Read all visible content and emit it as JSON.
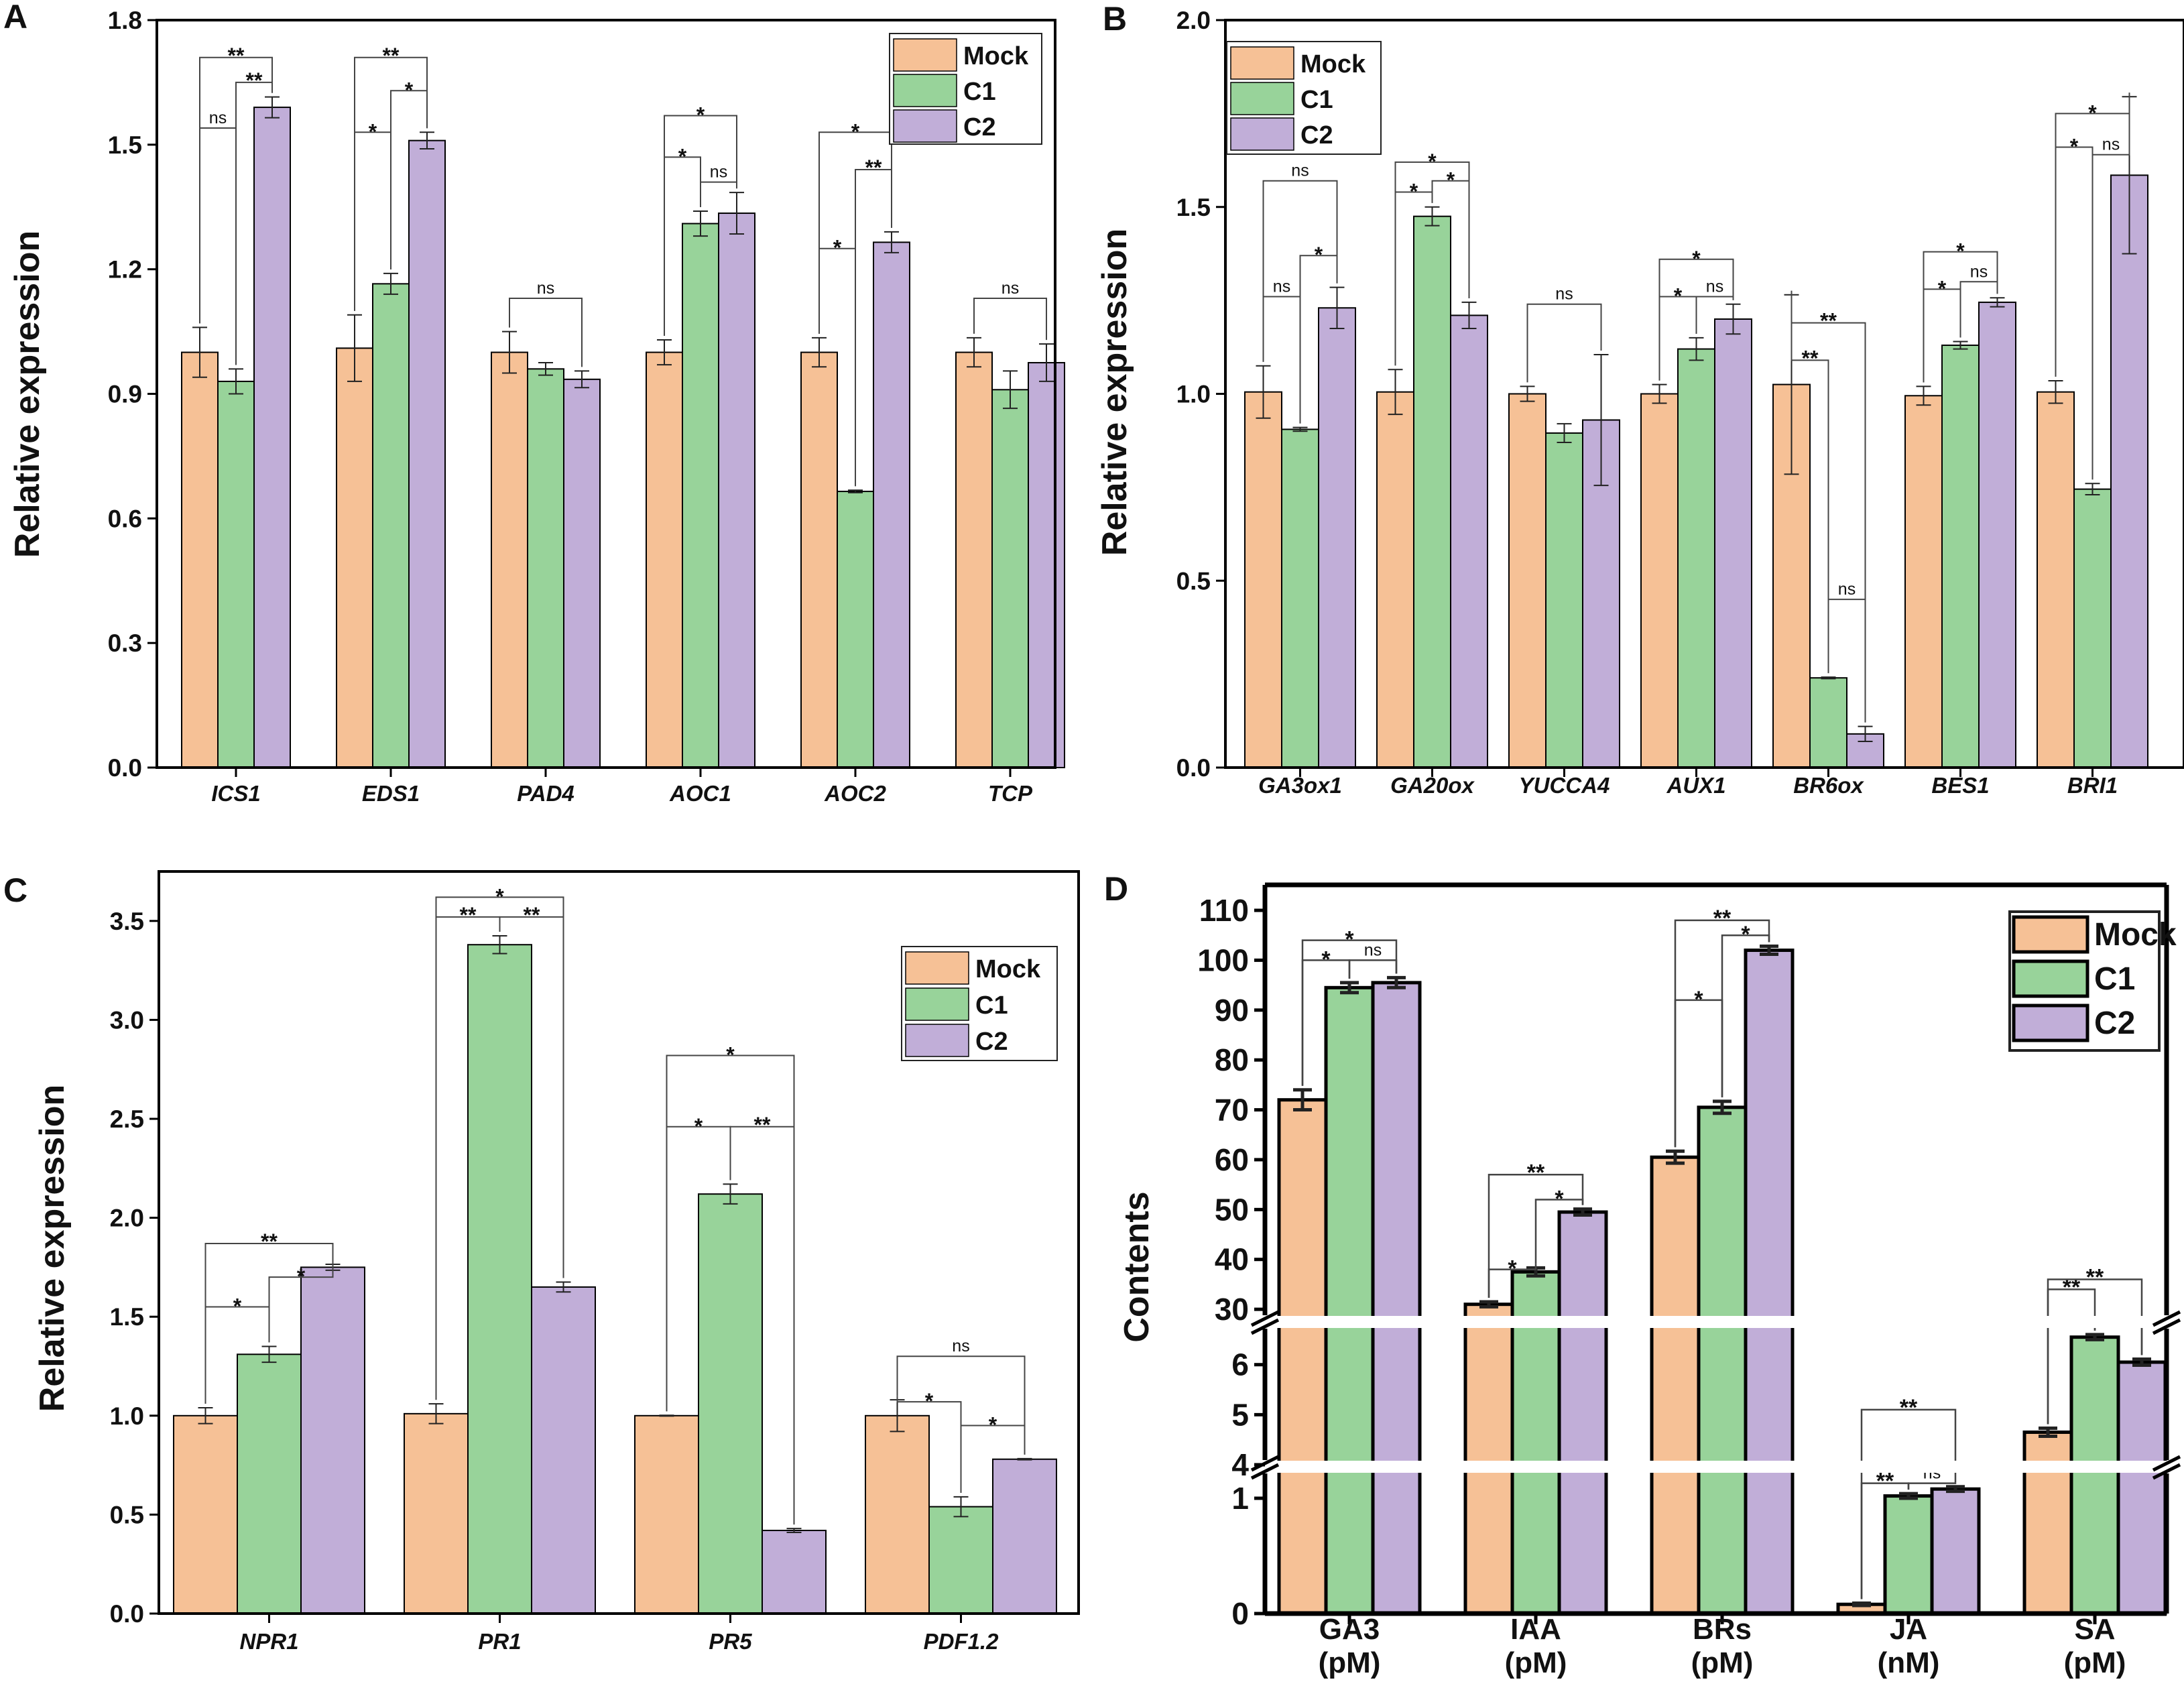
{
  "colors": {
    "Mock": "#f6c196",
    "C1": "#98d39a",
    "C2": "#c1aed8"
  },
  "chart_data": [
    {
      "panel": "A",
      "type": "bar",
      "title": "",
      "xlabel": "",
      "ylabel": "Relative expression",
      "ylim": [
        0,
        1.8
      ],
      "yticks": [
        "0.0",
        "0.3",
        "0.6",
        "0.9",
        "1.2",
        "1.5",
        "1.8"
      ],
      "ytick_values": [
        0,
        0.3,
        0.6,
        0.9,
        1.2,
        1.5,
        1.8
      ],
      "legend_position": "top-right",
      "categories": [
        "ICS1",
        "EDS1",
        "PAD4",
        "AOC1",
        "AOC2",
        "TCP"
      ],
      "series": [
        {
          "name": "Mock",
          "values": [
            1.0,
            1.01,
            1.0,
            1.0,
            1.0,
            1.0
          ],
          "errors": [
            0.06,
            0.08,
            0.05,
            0.03,
            0.035,
            0.035
          ]
        },
        {
          "name": "C1",
          "values": [
            0.93,
            1.165,
            0.96,
            1.31,
            0.665,
            0.91
          ],
          "errors": [
            0.03,
            0.025,
            0.015,
            0.03,
            0.003,
            0.045
          ]
        },
        {
          "name": "C2",
          "values": [
            1.59,
            1.51,
            0.935,
            1.335,
            1.265,
            0.975
          ],
          "errors": [
            0.025,
            0.02,
            0.02,
            0.05,
            0.025,
            0.045
          ]
        }
      ],
      "significance": [
        {
          "category": 0,
          "pair": [
            0,
            1
          ],
          "label": "ns",
          "level": 1.54
        },
        {
          "category": 0,
          "pair": [
            1,
            2
          ],
          "label": "**",
          "level": 1.65
        },
        {
          "category": 0,
          "pair": [
            0,
            2
          ],
          "label": "**",
          "level": 1.71
        },
        {
          "category": 1,
          "pair": [
            0,
            1
          ],
          "label": "*",
          "level": 1.53
        },
        {
          "category": 1,
          "pair": [
            1,
            2
          ],
          "label": "*",
          "level": 1.63
        },
        {
          "category": 1,
          "pair": [
            0,
            2
          ],
          "label": "**",
          "level": 1.71
        },
        {
          "category": 2,
          "pair": [
            0,
            2
          ],
          "label": "ns",
          "level": 1.13
        },
        {
          "category": 3,
          "pair": [
            0,
            1
          ],
          "label": "*",
          "level": 1.47
        },
        {
          "category": 3,
          "pair": [
            1,
            2
          ],
          "label": "ns",
          "level": 1.41
        },
        {
          "category": 3,
          "pair": [
            0,
            2
          ],
          "label": "*",
          "level": 1.57
        },
        {
          "category": 4,
          "pair": [
            0,
            1
          ],
          "label": "*",
          "level": 1.25
        },
        {
          "category": 4,
          "pair": [
            1,
            2
          ],
          "label": "**",
          "level": 1.44
        },
        {
          "category": 4,
          "pair": [
            0,
            2
          ],
          "label": "*",
          "level": 1.53
        },
        {
          "category": 5,
          "pair": [
            0,
            2
          ],
          "label": "ns",
          "level": 1.13
        }
      ]
    },
    {
      "panel": "B",
      "type": "bar",
      "title": "",
      "xlabel": "",
      "ylabel": "Relative expression",
      "ylim": [
        0,
        2.0
      ],
      "yticks": [
        "0.0",
        "0.5",
        "1.0",
        "1.5",
        "2.0"
      ],
      "ytick_values": [
        0,
        0.5,
        1.0,
        1.5,
        2.0
      ],
      "legend_position": "top-left",
      "categories": [
        "GA3ox1",
        "GA20ox",
        "YUCCA4",
        "AUX1",
        "BR6ox",
        "BES1",
        "BRI1"
      ],
      "series": [
        {
          "name": "Mock",
          "values": [
            1.005,
            1.005,
            1.0,
            1.0,
            1.025,
            0.995,
            1.005
          ],
          "errors": [
            0.07,
            0.06,
            0.02,
            0.025,
            0.24,
            0.025,
            0.03
          ]
        },
        {
          "name": "C1",
          "values": [
            0.905,
            1.475,
            0.895,
            1.12,
            0.24,
            1.13,
            0.745
          ],
          "errors": [
            0.005,
            0.025,
            0.025,
            0.03,
            0.002,
            0.01,
            0.015
          ]
        },
        {
          "name": "C2",
          "values": [
            1.23,
            1.21,
            0.93,
            1.2,
            0.09,
            1.245,
            1.585
          ],
          "errors": [
            0.055,
            0.035,
            0.175,
            0.04,
            0.02,
            0.012,
            0.21
          ]
        }
      ],
      "significance": [
        {
          "category": 0,
          "pair": [
            0,
            1
          ],
          "label": "ns",
          "level": 1.26
        },
        {
          "category": 0,
          "pair": [
            1,
            2
          ],
          "label": "*",
          "level": 1.37
        },
        {
          "category": 0,
          "pair": [
            0,
            2
          ],
          "label": "ns",
          "level": 1.57
        },
        {
          "category": 1,
          "pair": [
            0,
            1
          ],
          "label": "*",
          "level": 1.54
        },
        {
          "category": 1,
          "pair": [
            1,
            2
          ],
          "label": "*",
          "level": 1.57
        },
        {
          "category": 1,
          "pair": [
            0,
            2
          ],
          "label": "*",
          "level": 1.62
        },
        {
          "category": 2,
          "pair": [
            0,
            2
          ],
          "label": "ns",
          "level": 1.24
        },
        {
          "category": 3,
          "pair": [
            0,
            1
          ],
          "label": "*",
          "level": 1.26
        },
        {
          "category": 3,
          "pair": [
            1,
            2
          ],
          "label": "ns",
          "level": 1.26
        },
        {
          "category": 3,
          "pair": [
            0,
            2
          ],
          "label": "*",
          "level": 1.36
        },
        {
          "category": 4,
          "pair": [
            0,
            1
          ],
          "label": "**",
          "level": 1.09
        },
        {
          "category": 4,
          "pair": [
            1,
            2
          ],
          "label": "ns",
          "level": 0.45
        },
        {
          "category": 4,
          "pair": [
            0,
            2
          ],
          "label": "**",
          "level": 1.19
        },
        {
          "category": 5,
          "pair": [
            0,
            1
          ],
          "label": "*",
          "level": 1.28
        },
        {
          "category": 5,
          "pair": [
            1,
            2
          ],
          "label": "ns",
          "level": 1.3
        },
        {
          "category": 5,
          "pair": [
            0,
            2
          ],
          "label": "*",
          "level": 1.38
        },
        {
          "category": 6,
          "pair": [
            0,
            1
          ],
          "label": "*",
          "level": 1.66
        },
        {
          "category": 6,
          "pair": [
            1,
            2
          ],
          "label": "ns",
          "level": 1.64
        },
        {
          "category": 6,
          "pair": [
            0,
            2
          ],
          "label": "*",
          "level": 1.75
        }
      ]
    },
    {
      "panel": "C",
      "type": "bar",
      "title": "",
      "xlabel": "",
      "ylabel": "Relative expression",
      "ylim": [
        0,
        3.75
      ],
      "yticks": [
        "0.0",
        "0.5",
        "1.0",
        "1.5",
        "2.0",
        "2.5",
        "3.0",
        "3.5"
      ],
      "ytick_values": [
        0,
        0.5,
        1.0,
        1.5,
        2.0,
        2.5,
        3.0,
        3.5
      ],
      "legend_position": "top-right",
      "categories": [
        "NPR1",
        "PR1",
        "PR5",
        "PDF1.2"
      ],
      "series": [
        {
          "name": "Mock",
          "values": [
            1.0,
            1.01,
            1.0,
            1.0
          ],
          "errors": [
            0.04,
            0.05,
            0.002,
            0.08
          ]
        },
        {
          "name": "C1",
          "values": [
            1.31,
            3.38,
            2.12,
            0.54
          ],
          "errors": [
            0.04,
            0.045,
            0.05,
            0.05
          ]
        },
        {
          "name": "C2",
          "values": [
            1.75,
            1.65,
            0.42,
            0.78
          ],
          "errors": [
            0.015,
            0.025,
            0.01,
            0.003
          ]
        }
      ],
      "significance": [
        {
          "category": 0,
          "pair": [
            0,
            1
          ],
          "label": "*",
          "level": 1.55
        },
        {
          "category": 0,
          "pair": [
            1,
            2
          ],
          "label": "*",
          "level": 1.7
        },
        {
          "category": 0,
          "pair": [
            0,
            2
          ],
          "label": "**",
          "level": 1.87
        },
        {
          "category": 1,
          "pair": [
            0,
            1
          ],
          "label": "**",
          "level": 3.52
        },
        {
          "category": 1,
          "pair": [
            1,
            2
          ],
          "label": "**",
          "level": 3.52
        },
        {
          "category": 1,
          "pair": [
            0,
            2
          ],
          "label": "*",
          "level": 3.62
        },
        {
          "category": 2,
          "pair": [
            0,
            1
          ],
          "label": "*",
          "level": 2.46
        },
        {
          "category": 2,
          "pair": [
            1,
            2
          ],
          "label": "**",
          "level": 2.46
        },
        {
          "category": 2,
          "pair": [
            0,
            2
          ],
          "label": "*",
          "level": 2.82
        },
        {
          "category": 3,
          "pair": [
            0,
            1
          ],
          "label": "*",
          "level": 1.07
        },
        {
          "category": 3,
          "pair": [
            1,
            2
          ],
          "label": "*",
          "level": 0.95
        },
        {
          "category": 3,
          "pair": [
            0,
            2
          ],
          "label": "ns",
          "level": 1.3
        }
      ]
    },
    {
      "panel": "D",
      "type": "bar",
      "title": "",
      "xlabel": "",
      "ylabel": "Contents",
      "axis_breaks": [
        {
          "lower_segment": [
            0,
            1.25
          ],
          "upper_segment": [
            4,
            6.8
          ]
        },
        {
          "lower_segment": [
            4,
            6.8
          ],
          "upper_segment": [
            28,
            110
          ]
        }
      ],
      "yticks": [
        "0",
        "1",
        "4",
        "5",
        "6",
        "30",
        "40",
        "50",
        "60",
        "70",
        "80",
        "90",
        "100",
        "110"
      ],
      "ytick_values": [
        0,
        1,
        4,
        5,
        6,
        30,
        40,
        50,
        60,
        70,
        80,
        90,
        100,
        110
      ],
      "legend_position": "top-right",
      "categories": [
        "GA3",
        "IAA",
        "BRs",
        "JA",
        "SA"
      ],
      "units": [
        "(pM)",
        "(pM)",
        "(pM)",
        "(nM)",
        "(pM)"
      ],
      "series": [
        {
          "name": "Mock",
          "values": [
            72,
            31,
            60.5,
            0.08,
            4.65
          ],
          "errors": [
            2.0,
            0.5,
            1.2,
            0.01,
            0.08
          ]
        },
        {
          "name": "C1",
          "values": [
            94.5,
            37.5,
            70.5,
            1.02,
            6.55
          ],
          "errors": [
            1.0,
            0.8,
            1.2,
            0.02,
            0.05
          ]
        },
        {
          "name": "C2",
          "values": [
            95.5,
            49.5,
            102,
            1.08,
            6.05
          ],
          "errors": [
            1.0,
            0.6,
            0.8,
            0.02,
            0.06
          ]
        }
      ],
      "significance": [
        {
          "category": 0,
          "pair": [
            0,
            1
          ],
          "label": "*",
          "level": 100
        },
        {
          "category": 0,
          "pair": [
            1,
            2
          ],
          "label": "ns",
          "level": 100
        },
        {
          "category": 0,
          "pair": [
            0,
            2
          ],
          "label": "*",
          "level": 104
        },
        {
          "category": 1,
          "pair": [
            0,
            1
          ],
          "label": "*",
          "level": 38
        },
        {
          "category": 1,
          "pair": [
            1,
            2
          ],
          "label": "*",
          "level": 52
        },
        {
          "category": 1,
          "pair": [
            0,
            2
          ],
          "label": "**",
          "level": 57
        },
        {
          "category": 2,
          "pair": [
            0,
            1
          ],
          "label": "*",
          "level": 92
        },
        {
          "category": 2,
          "pair": [
            1,
            2
          ],
          "label": "*",
          "level": 105
        },
        {
          "category": 2,
          "pair": [
            0,
            2
          ],
          "label": "**",
          "level": 108
        },
        {
          "category": 3,
          "pair": [
            0,
            1
          ],
          "label": "**",
          "level": 1.13
        },
        {
          "category": 3,
          "pair": [
            1,
            2
          ],
          "label": "ns",
          "level": 1.13
        },
        {
          "category": 3,
          "pair": [
            0,
            2
          ],
          "label": "**",
          "level": 5.1
        },
        {
          "category": 4,
          "pair": [
            0,
            1
          ],
          "label": "**",
          "level": 34
        },
        {
          "category": 4,
          "pair": [
            1,
            2
          ],
          "label": "*",
          "level": 6.75
        },
        {
          "category": 4,
          "pair": [
            0,
            2
          ],
          "label": "**",
          "level": 36
        }
      ]
    }
  ]
}
